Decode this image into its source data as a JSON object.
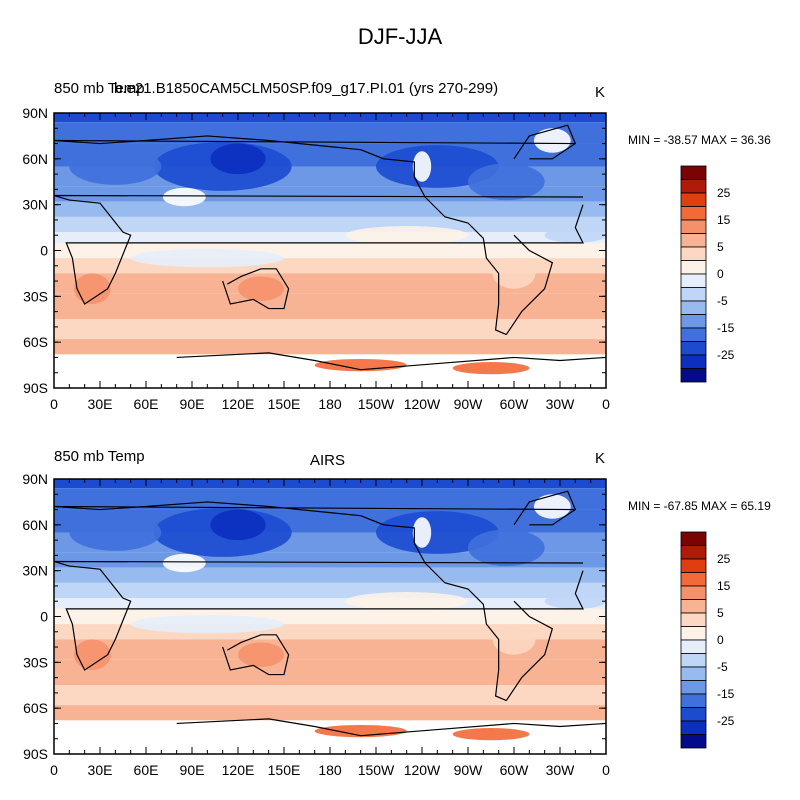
{
  "title": "DJF-JJA",
  "panels": [
    {
      "left_label": "850 mb Temp",
      "center_label": "b.e21.B1850CAM5CLM50SP.f09_g17.PI.01 (yrs 270-299)",
      "units": "K",
      "minmax": "MIN = -38.57 MAX =  36.36"
    },
    {
      "left_label": "850 mb Temp",
      "center_label": "AIRS",
      "units": "K",
      "minmax": "MIN = -67.85 MAX =  65.19"
    }
  ],
  "axes": {
    "lat_labels": [
      "90N",
      "60N",
      "30N",
      "0",
      "30S",
      "60S",
      "90S"
    ],
    "lon_labels": [
      "0",
      "30E",
      "60E",
      "90E",
      "120E",
      "150E",
      "180",
      "150W",
      "120W",
      "90W",
      "60W",
      "30W",
      "0"
    ]
  },
  "colorbar": {
    "tick_labels": [
      "25",
      "15",
      "5",
      "0",
      "-5",
      "-15",
      "-25"
    ],
    "colors": [
      "#7a0404",
      "#b01a08",
      "#e13e10",
      "#f26a3a",
      "#f5916a",
      "#f8b395",
      "#fcd7c1",
      "#fdf2e8",
      "#e5eefa",
      "#bfd6f6",
      "#97bbee",
      "#6c98e6",
      "#3f70db",
      "#1c4bd0",
      "#0b2fbf",
      "#040a8a"
    ]
  }
}
